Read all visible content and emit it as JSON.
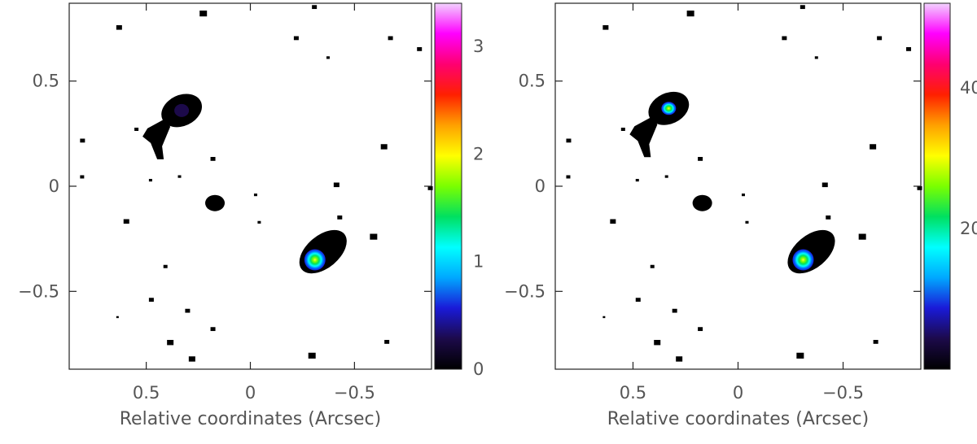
{
  "chart_data": [
    {
      "type": "heatmap",
      "title": "",
      "xlabel": "Relative coordinates (Arcsec)",
      "ylabel": "",
      "xlim": [
        0.87,
        -0.87
      ],
      "ylim": [
        -0.87,
        0.87
      ],
      "x_ticks": [
        {
          "value": 0.5,
          "label": "0.5"
        },
        {
          "value": 0,
          "label": "0"
        },
        {
          "value": -0.5,
          "label": "−0.5"
        }
      ],
      "y_ticks": [
        {
          "value": 0.5,
          "label": "0.5"
        },
        {
          "value": 0,
          "label": "0"
        },
        {
          "value": -0.5,
          "label": "−0.5"
        }
      ],
      "colorbar": {
        "range": [
          0,
          3.4
        ],
        "ticks": [
          {
            "value": 0,
            "label": "0"
          },
          {
            "value": 1,
            "label": "1"
          },
          {
            "value": 2,
            "label": "2"
          },
          {
            "value": 3,
            "label": "3"
          }
        ]
      },
      "sources": [
        {
          "x": 0.33,
          "y": 0.36,
          "peak": 0.15
        },
        {
          "x": 0.17,
          "y": -0.08,
          "peak": 0.0
        },
        {
          "x": -0.31,
          "y": -0.35,
          "peak": 1.3
        }
      ]
    },
    {
      "type": "heatmap",
      "title": "",
      "xlabel": "Relative coordinates (Arcsec)",
      "ylabel": "",
      "xlim": [
        0.87,
        -0.87
      ],
      "ylim": [
        -0.87,
        0.87
      ],
      "x_ticks": [
        {
          "value": 0.5,
          "label": "0.5"
        },
        {
          "value": 0,
          "label": "0"
        },
        {
          "value": -0.5,
          "label": "−0.5"
        }
      ],
      "y_ticks": [
        {
          "value": 0.5,
          "label": "0.5"
        },
        {
          "value": 0,
          "label": "0"
        },
        {
          "value": -0.5,
          "label": "−0.5"
        }
      ],
      "colorbar": {
        "range": [
          0,
          52
        ],
        "ticks": [
          {
            "value": 40,
            "label": "40"
          },
          {
            "value": 20,
            "label": "20"
          }
        ]
      },
      "sources": [
        {
          "x": 0.33,
          "y": 0.37,
          "peak": 20
        },
        {
          "x": 0.17,
          "y": -0.08,
          "peak": 0
        },
        {
          "x": -0.31,
          "y": -0.35,
          "peak": 22
        }
      ]
    }
  ],
  "colormap": [
    "#000000",
    "#1c0a4a",
    "#1a1ad8",
    "#00a8ff",
    "#00ffff",
    "#00e060",
    "#7aff00",
    "#ffff00",
    "#ffa000",
    "#ff2000",
    "#ff0070",
    "#ff00ff",
    "#f2d2ff"
  ]
}
